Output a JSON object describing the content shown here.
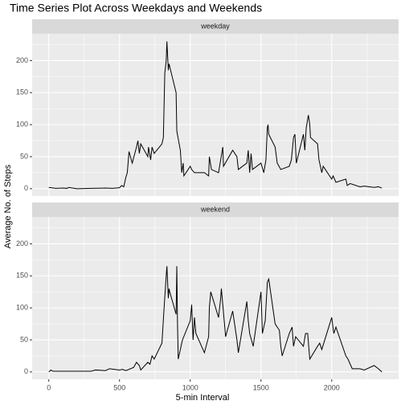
{
  "title": "Time Series Plot Across Weekdays and Weekends",
  "xlabel": "5-min Interval",
  "ylabel": "Average No. of Steps",
  "chart_data": [
    {
      "type": "line",
      "panel": "weekday",
      "color": "#000000",
      "grid": true,
      "xlim": [
        -117.75,
        2472.75
      ],
      "ylim": [
        -11.5,
        241.9
      ],
      "xticks": [
        0,
        500,
        1000,
        1500,
        2000
      ],
      "yticks": [
        0,
        50,
        100,
        150,
        200
      ],
      "minor_xticks": [
        250,
        750,
        1250,
        1750,
        2250
      ],
      "minor_yticks": [
        25,
        75,
        125,
        175,
        225
      ],
      "x": [
        0,
        50,
        100,
        130,
        140,
        200,
        300,
        400,
        450,
        500,
        515,
        530,
        545,
        555,
        567,
        590,
        620,
        630,
        640,
        650,
        700,
        705,
        720,
        730,
        745,
        800,
        810,
        820,
        830,
        835,
        845,
        850,
        900,
        905,
        930,
        940,
        950,
        955,
        1000,
        1010,
        1030,
        1100,
        1130,
        1135,
        1150,
        1200,
        1230,
        1235,
        1300,
        1330,
        1340,
        1400,
        1410,
        1420,
        1430,
        1440,
        1500,
        1520,
        1535,
        1545,
        1550,
        1555,
        1600,
        1615,
        1640,
        1700,
        1715,
        1730,
        1740,
        1750,
        1800,
        1810,
        1820,
        1835,
        1845,
        1850,
        1900,
        1910,
        1930,
        1940,
        2000,
        2010,
        2030,
        2100,
        2110,
        2130,
        2200,
        2230,
        2300,
        2330,
        2355
      ],
      "values": [
        2,
        0.5,
        1,
        0.5,
        2,
        0,
        0.5,
        1,
        0.5,
        1.5,
        5,
        3,
        18,
        25,
        58,
        40,
        65,
        75,
        55,
        70,
        50,
        65,
        45,
        65,
        55,
        70,
        80,
        180,
        200,
        230,
        185,
        195,
        150,
        90,
        60,
        25,
        40,
        20,
        35,
        30,
        25,
        25,
        20,
        50,
        30,
        25,
        65,
        35,
        60,
        50,
        30,
        40,
        60,
        25,
        55,
        30,
        40,
        25,
        45,
        95,
        100,
        85,
        65,
        40,
        30,
        35,
        45,
        80,
        85,
        40,
        85,
        60,
        95,
        115,
        100,
        80,
        70,
        45,
        25,
        35,
        15,
        20,
        10,
        15,
        5,
        8,
        3,
        4,
        2,
        3,
        1
      ]
    },
    {
      "type": "line",
      "panel": "weekend",
      "color": "#000000",
      "grid": true,
      "xlim": [
        -117.75,
        2472.75
      ],
      "ylim": [
        -11.5,
        241.9
      ],
      "xticks": [
        0,
        500,
        1000,
        1500,
        2000
      ],
      "yticks": [
        0,
        50,
        100,
        150,
        200
      ],
      "minor_xticks": [
        250,
        750,
        1250,
        1750,
        2250
      ],
      "minor_yticks": [
        25,
        75,
        125,
        175,
        225
      ],
      "x": [
        0,
        15,
        30,
        100,
        200,
        300,
        330,
        400,
        430,
        500,
        520,
        545,
        600,
        620,
        640,
        650,
        700,
        715,
        730,
        745,
        800,
        815,
        830,
        835,
        845,
        850,
        855,
        900,
        905,
        910,
        915,
        930,
        945,
        1000,
        1010,
        1020,
        1030,
        1040,
        1100,
        1130,
        1135,
        1145,
        1200,
        1215,
        1220,
        1240,
        1250,
        1300,
        1330,
        1340,
        1400,
        1410,
        1420,
        1445,
        1500,
        1510,
        1530,
        1545,
        1555,
        1600,
        1630,
        1640,
        1650,
        1700,
        1720,
        1730,
        1745,
        1800,
        1815,
        1830,
        1845,
        1900,
        1915,
        1930,
        2000,
        2015,
        2030,
        2100,
        2115,
        2145,
        2200,
        2230,
        2300,
        2330,
        2355
      ],
      "values": [
        0,
        3,
        1,
        1,
        1,
        1,
        3,
        2,
        5,
        3,
        4,
        2,
        7,
        15,
        10,
        3,
        15,
        12,
        25,
        20,
        45,
        100,
        150,
        165,
        115,
        130,
        125,
        90,
        165,
        75,
        20,
        35,
        50,
        80,
        105,
        50,
        85,
        60,
        30,
        55,
        100,
        125,
        85,
        115,
        130,
        80,
        55,
        95,
        50,
        30,
        110,
        80,
        60,
        40,
        125,
        60,
        80,
        140,
        145,
        75,
        65,
        40,
        25,
        60,
        70,
        40,
        55,
        40,
        60,
        60,
        20,
        40,
        45,
        35,
        85,
        60,
        70,
        25,
        20,
        5,
        5,
        3,
        10,
        5,
        0
      ]
    }
  ]
}
